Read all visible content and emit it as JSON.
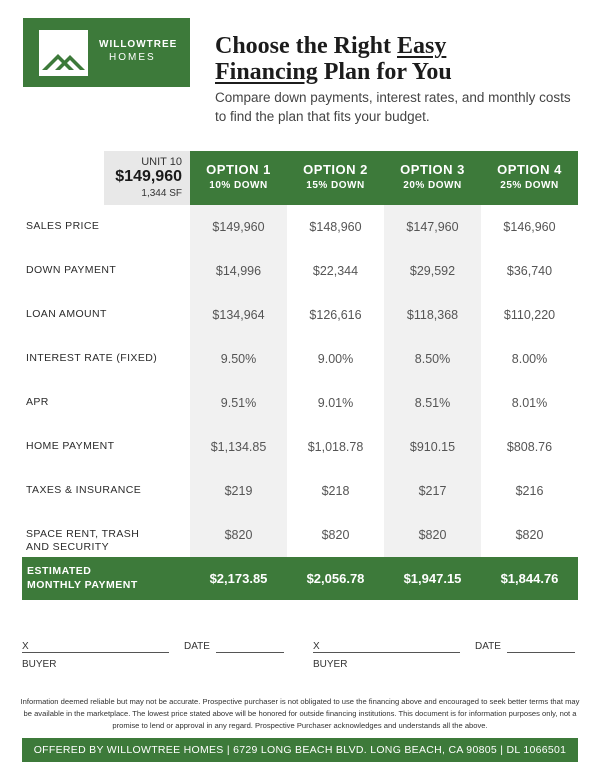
{
  "brand": {
    "name": "WILLOWTREE",
    "sub": "HOMES",
    "logo_icon": "house-roof-icon",
    "color": "#3d7a3a"
  },
  "headline": {
    "part1": "Choose the Right ",
    "part2": "Easy",
    "part3": "Financing",
    "part4": " Plan for You"
  },
  "subheadline": "Compare down payments, interest rates, and monthly costs to find the plan that fits your budget.",
  "unit": {
    "label": "UNIT 10",
    "price": "$149,960",
    "sqft": "1,344 SF"
  },
  "options": [
    {
      "title": "OPTION 1",
      "down": "10% DOWN"
    },
    {
      "title": "OPTION 2",
      "down": "15% DOWN"
    },
    {
      "title": "OPTION 3",
      "down": "20% DOWN"
    },
    {
      "title": "OPTION 4",
      "down": "25% DOWN"
    }
  ],
  "rows": [
    {
      "label": "SALES PRICE",
      "values": [
        "$149,960",
        "$148,960",
        "$147,960",
        "$146,960"
      ]
    },
    {
      "label": "DOWN PAYMENT",
      "values": [
        "$14,996",
        "$22,344",
        "$29,592",
        "$36,740"
      ]
    },
    {
      "label": "LOAN AMOUNT",
      "values": [
        "$134,964",
        "$126,616",
        "$118,368",
        "$110,220"
      ]
    },
    {
      "label": "INTEREST RATE (FIXED)",
      "values": [
        "9.50%",
        "9.00%",
        "8.50%",
        "8.00%"
      ]
    },
    {
      "label": "APR",
      "values": [
        "9.51%",
        "9.01%",
        "8.51%",
        "8.01%"
      ]
    },
    {
      "label": "HOME PAYMENT",
      "values": [
        "$1,134.85",
        "$1,018.78",
        "$910.15",
        "$808.76"
      ]
    },
    {
      "label": "TAXES & INSURANCE",
      "values": [
        "$219",
        "$218",
        "$217",
        "$216"
      ]
    },
    {
      "label": "SPACE RENT, TRASH AND SECURITY",
      "values": [
        "$820",
        "$820",
        "$820",
        "$820"
      ]
    }
  ],
  "total": {
    "label_line1": "ESTIMATED",
    "label_line2": "MONTHLY PAYMENT",
    "values": [
      "$2,173.85",
      "$2,056.78",
      "$1,947.15",
      "$1,844.76"
    ]
  },
  "signature": {
    "x_mark": "X",
    "date_label": "DATE",
    "buyer_label": "BUYER"
  },
  "disclaimer": "Information deemed reliable but may not be accurate. Prospective purchaser is not obligated to use the financing above and encouraged to seek better terms that may be available in the marketplace. The lowest price stated above will be honored for outside financing institutions. This document is for information purposes only, not a promise to lend or approval in any regard. Prospective Purchaser acknowledges and understands all the above.",
  "footer": "OFFERED BY WILLOWTREE HOMES | 6729 LONG BEACH BLVD. LONG BEACH, CA 90805 | DL 1066501"
}
